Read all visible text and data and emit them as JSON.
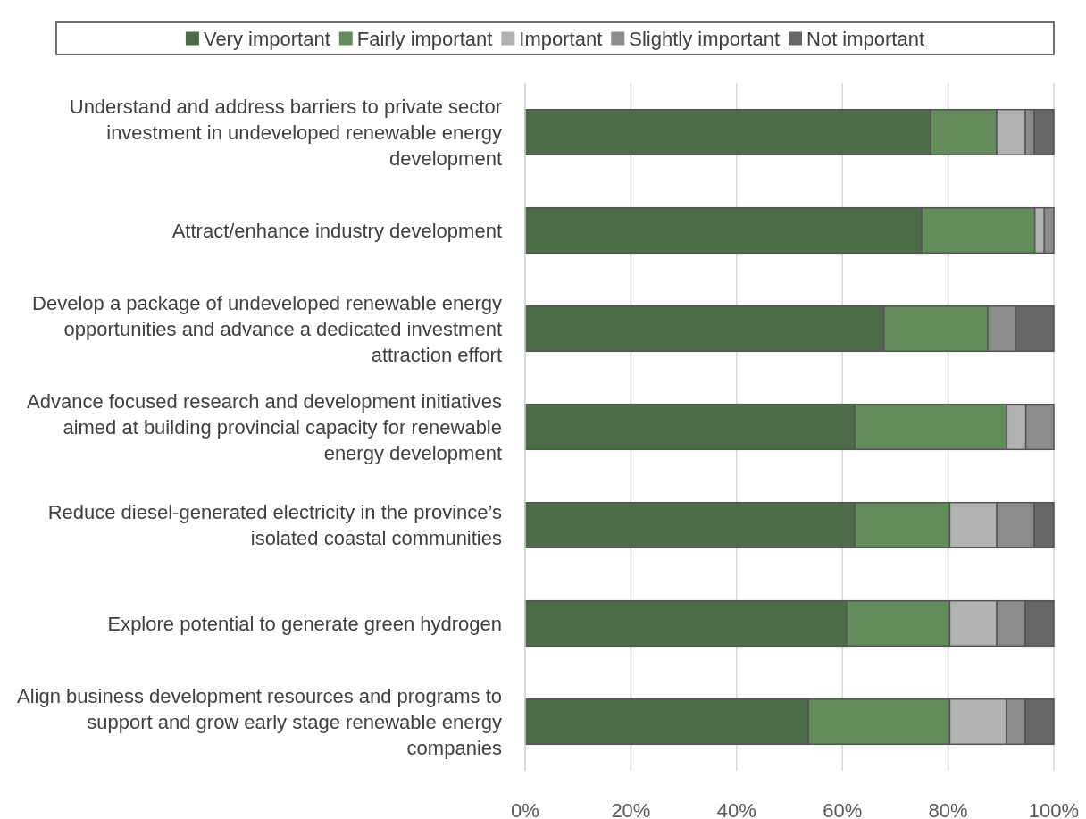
{
  "chart_data": {
    "type": "bar",
    "orientation": "horizontal",
    "stacked": true,
    "categories": [
      "Understand and address barriers to private sector investment in undeveloped renewable energy development",
      "Attract/enhance industry development",
      "Develop a package of undeveloped renewable energy opportunities and advance a dedicated investment attraction effort",
      "Advance focused research and development initiatives aimed at building provincial capacity for renewable energy development",
      "Reduce diesel-generated electricity in the province’s isolated coastal communities",
      "Explore potential to generate green hydrogen",
      "Align business development resources and programs to support and grow early stage renewable energy companies"
    ],
    "series": [
      {
        "name": "Very important",
        "color": "#4c6b47",
        "values": [
          76.7,
          75.0,
          67.9,
          62.4,
          62.4,
          60.8,
          53.6
        ]
      },
      {
        "name": "Fairly important",
        "color": "#638b5b",
        "values": [
          12.5,
          21.4,
          19.6,
          28.7,
          17.9,
          19.5,
          26.7
        ]
      },
      {
        "name": "Important",
        "color": "#b2b2b2",
        "values": [
          5.4,
          1.8,
          0,
          3.6,
          8.9,
          8.9,
          10.7
        ]
      },
      {
        "name": "Slightly important",
        "color": "#8c8c8c",
        "values": [
          1.7,
          1.8,
          5.3,
          5.3,
          7.1,
          5.4,
          3.6
        ]
      },
      {
        "name": "Not important",
        "color": "#666666",
        "values": [
          3.7,
          0,
          7.2,
          0,
          3.7,
          5.4,
          5.4
        ]
      }
    ],
    "xlim": [
      0,
      100
    ],
    "xticks": [
      {
        "value": 0,
        "label": "0%"
      },
      {
        "value": 20,
        "label": "20%"
      },
      {
        "value": 40,
        "label": "40%"
      },
      {
        "value": 60,
        "label": "60%"
      },
      {
        "value": 80,
        "label": "80%"
      },
      {
        "value": 100,
        "label": "100%"
      }
    ],
    "grid": "x",
    "legend": "top"
  }
}
